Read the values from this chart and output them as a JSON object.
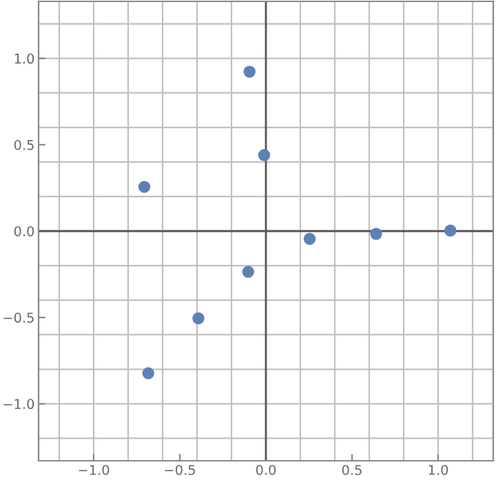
{
  "chart_data": {
    "type": "scatter",
    "x": [
      -0.095,
      -0.01,
      -0.706,
      0.254,
      0.64,
      1.071,
      -0.103,
      -0.392,
      -0.683
    ],
    "series": [
      {
        "color": "#5e81b5",
        "values": [
          0.923,
          0.44,
          0.256,
          -0.045,
          -0.016,
          0.003,
          -0.236,
          -0.505,
          -0.823
        ]
      }
    ],
    "xlim": [
      -1.32,
      1.32
    ],
    "ylim": [
      -1.33,
      1.33
    ],
    "xticks": [
      {
        "value": -1,
        "label": "−1.0"
      },
      -0.5,
      {
        "value": 0,
        "label": "0.0"
      },
      0.5,
      {
        "value": 1,
        "label": "1.0"
      }
    ],
    "yticks": [
      {
        "value": -1,
        "label": "−1.0"
      },
      -0.5,
      {
        "value": 0,
        "label": "0.0"
      },
      0.5,
      {
        "value": 1,
        "label": "1.0"
      }
    ],
    "grid": true,
    "marker": "circle",
    "legend": false
  }
}
